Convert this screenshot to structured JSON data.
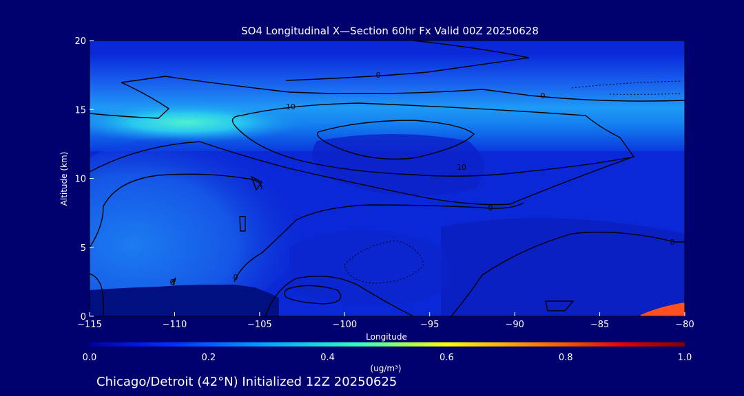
{
  "chart_data": {
    "type": "heatmap",
    "title": "SO4 Longitudinal X—Section 60hr  Fx Valid 00Z 20250628",
    "xlabel": "Longitude",
    "ylabel": "Altitude (km)",
    "xlim": [
      -115,
      -80
    ],
    "ylim": [
      0,
      20
    ],
    "x_ticks": [
      "−115",
      "−110",
      "−105",
      "−100",
      "−95",
      "−90",
      "−85",
      "−80"
    ],
    "y_ticks": [
      "0",
      "5",
      "10",
      "15",
      "20"
    ],
    "colorbar": {
      "label": "(ug/m³)",
      "range": [
        0.0,
        1.0
      ],
      "ticks": [
        "0.0",
        "0.2",
        "0.4",
        "0.6",
        "0.8",
        "1.0"
      ],
      "colors": [
        "#0000a0",
        "#0030ff",
        "#00a8ff",
        "#30ffc0",
        "#ffff00",
        "#ff8000",
        "#e00000",
        "#800000"
      ]
    },
    "contour_labels": [
      "0",
      "10",
      "0",
      "10",
      "0",
      "0",
      "0",
      "0"
    ],
    "subtitle": "Chicago/Detroit (42°N) Initialized 12Z 20250625"
  }
}
